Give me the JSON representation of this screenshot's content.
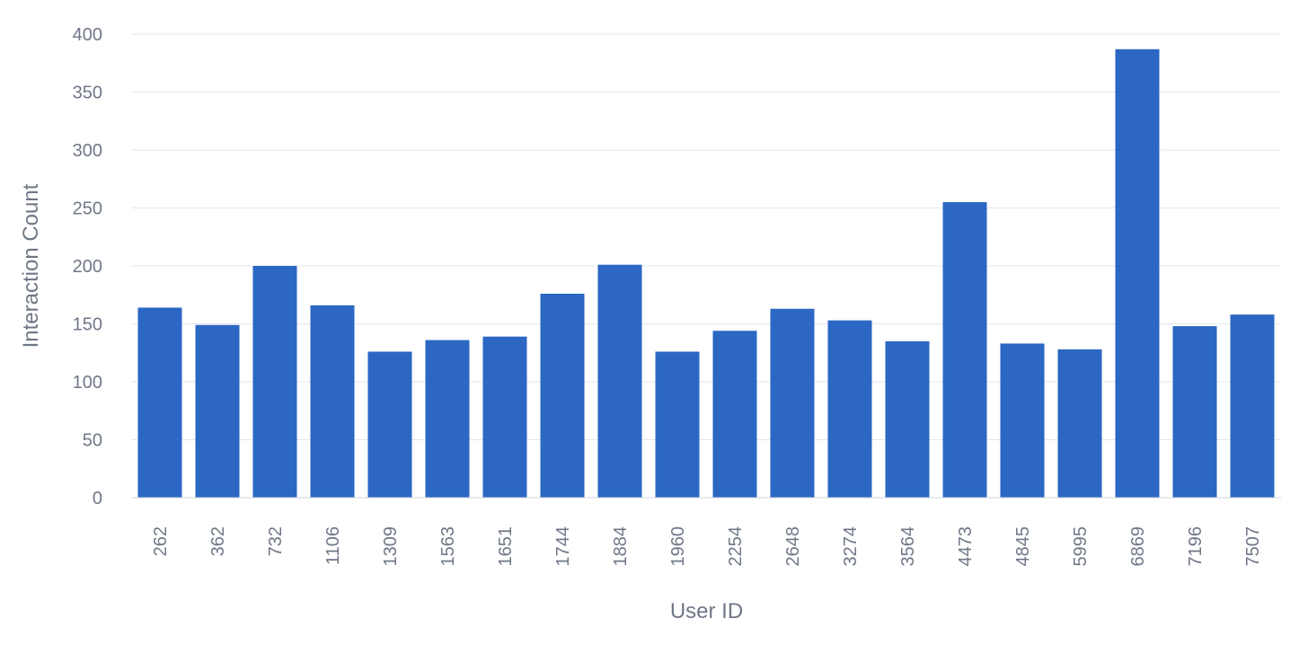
{
  "chart_data": {
    "type": "bar",
    "title": "",
    "xlabel": "User ID",
    "ylabel": "Interaction Count",
    "ylim": [
      0,
      400
    ],
    "yticks": [
      0,
      50,
      100,
      150,
      200,
      250,
      300,
      350,
      400
    ],
    "grid": true,
    "legend": "none",
    "bar_color": "#2b67c3",
    "categories": [
      "262",
      "362",
      "732",
      "1106",
      "1309",
      "1563",
      "1651",
      "1744",
      "1884",
      "1960",
      "2254",
      "2648",
      "3274",
      "3564",
      "4473",
      "4845",
      "5995",
      "6869",
      "7196",
      "7507"
    ],
    "values": [
      164,
      149,
      200,
      166,
      126,
      136,
      139,
      176,
      201,
      126,
      144,
      163,
      153,
      135,
      255,
      133,
      128,
      387,
      148,
      158
    ]
  }
}
